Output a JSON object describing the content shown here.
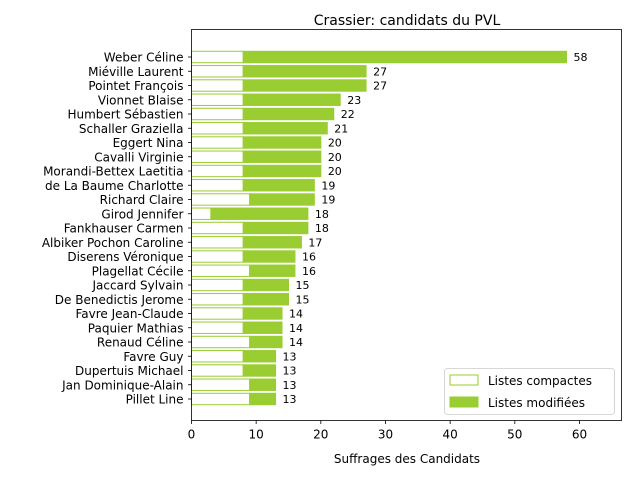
{
  "chart_data": {
    "type": "bar",
    "orientation": "horizontal",
    "stacked": true,
    "title": "Crassier: candidats du PVL",
    "xlabel": "Suffrages des Candidats",
    "ylabel": "",
    "xlim": [
      0,
      66.5
    ],
    "xticks": [
      0,
      10,
      20,
      30,
      40,
      50,
      60
    ],
    "grid": false,
    "legend_position": "lower-right",
    "colors": {
      "modifiees": "#9acd32",
      "compactes_edge": "#9acd32",
      "compactes_fill": "#ffffff"
    },
    "categories": [
      "Weber Céline",
      "Miéville Laurent",
      "Pointet François",
      "Vionnet Blaise",
      "Humbert Sébastien",
      "Schaller Graziella",
      "Eggert Nina",
      "Cavalli Virginie",
      "Morandi-Bettex Laetitia",
      "de La Baume Charlotte",
      "Richard Claire",
      "Girod Jennifer",
      "Fankhauser Carmen",
      "Albiker Pochon Caroline",
      "Diserens Véronique",
      "Plagellat Cécile",
      "Jaccard Sylvain",
      "De Benedictis Jerome",
      "Favre Jean-Claude",
      "Paquier Mathias",
      "Renaud Céline",
      "Favre Guy",
      "Dupertuis Michael",
      "Jan Dominique-Alain",
      "Pillet Line"
    ],
    "series": [
      {
        "name": "Listes compactes",
        "values": [
          8,
          8,
          8,
          8,
          8,
          8,
          8,
          8,
          8,
          8,
          9,
          3,
          8,
          8,
          8,
          9,
          8,
          8,
          8,
          8,
          9,
          8,
          8,
          9,
          9
        ]
      },
      {
        "name": "Listes modifiées",
        "values": [
          50,
          19,
          19,
          15,
          14,
          13,
          12,
          12,
          12,
          11,
          10,
          15,
          10,
          9,
          8,
          7,
          7,
          7,
          6,
          6,
          5,
          5,
          5,
          4,
          4
        ]
      }
    ],
    "totals": [
      58,
      27,
      27,
      23,
      22,
      21,
      20,
      20,
      20,
      19,
      19,
      18,
      18,
      17,
      16,
      16,
      15,
      15,
      14,
      14,
      14,
      13,
      13,
      13,
      13
    ]
  }
}
